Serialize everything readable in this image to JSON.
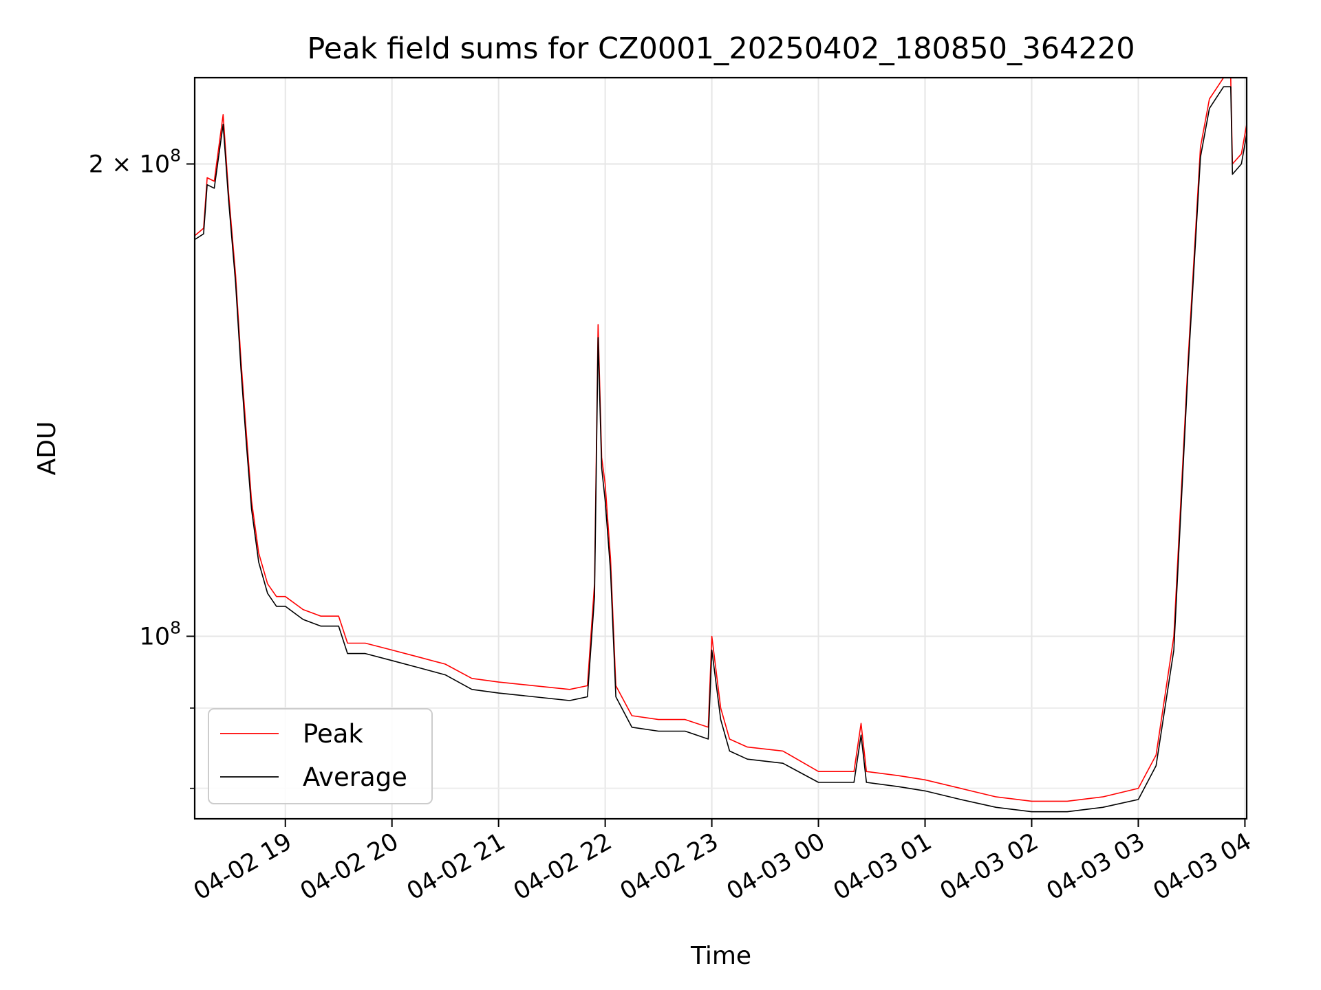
{
  "chart_data": {
    "type": "line",
    "title": "Peak field sums for CZ0001_20250402_180850_364220",
    "xlabel": "Time",
    "ylabel": "ADU",
    "yscale": "log",
    "xlim": [
      "2025-04-02T18:09",
      "2025-04-03T04:01"
    ],
    "ylim": [
      76500000,
      227000000
    ],
    "grid": true,
    "legend_position": "lower-left",
    "x_ticks": [
      {
        "value": "2025-04-02T19:00",
        "label": "04-02 19"
      },
      {
        "value": "2025-04-02T20:00",
        "label": "04-02 20"
      },
      {
        "value": "2025-04-02T21:00",
        "label": "04-02 21"
      },
      {
        "value": "2025-04-02T22:00",
        "label": "04-02 22"
      },
      {
        "value": "2025-04-02T23:00",
        "label": "04-02 23"
      },
      {
        "value": "2025-04-03T00:00",
        "label": "04-03 00"
      },
      {
        "value": "2025-04-03T01:00",
        "label": "04-03 01"
      },
      {
        "value": "2025-04-03T02:00",
        "label": "04-03 02"
      },
      {
        "value": "2025-04-03T03:00",
        "label": "04-03 03"
      },
      {
        "value": "2025-04-03T04:00",
        "label": "04-03 04"
      }
    ],
    "y_ticks": [
      {
        "value": 100000000,
        "base": "10",
        "exp": "8",
        "prefix": ""
      },
      {
        "value": 200000000,
        "base": "10",
        "exp": "8",
        "prefix": "2 × "
      }
    ],
    "y_minor_ticks": [
      80000000,
      90000000
    ],
    "series": [
      {
        "name": "Peak",
        "color": "#ff0000",
        "points": [
          [
            "2025-04-02T18:09",
            180000000
          ],
          [
            "2025-04-02T18:14",
            182000000
          ],
          [
            "2025-04-02T18:16",
            196000000
          ],
          [
            "2025-04-02T18:20",
            195000000
          ],
          [
            "2025-04-02T18:25",
            215000000
          ],
          [
            "2025-04-02T18:28",
            192000000
          ],
          [
            "2025-04-02T18:32",
            170000000
          ],
          [
            "2025-04-02T18:35",
            150000000
          ],
          [
            "2025-04-02T18:38",
            135000000
          ],
          [
            "2025-04-02T18:41",
            122000000
          ],
          [
            "2025-04-02T18:45",
            113000000
          ],
          [
            "2025-04-02T18:50",
            108000000
          ],
          [
            "2025-04-02T18:55",
            106000000
          ],
          [
            "2025-04-02T19:00",
            106000000
          ],
          [
            "2025-04-02T19:10",
            104000000
          ],
          [
            "2025-04-02T19:20",
            103000000
          ],
          [
            "2025-04-02T19:30",
            103000000
          ],
          [
            "2025-04-02T19:35",
            99000000
          ],
          [
            "2025-04-02T19:45",
            99000000
          ],
          [
            "2025-04-02T20:00",
            98000000
          ],
          [
            "2025-04-02T20:15",
            97000000
          ],
          [
            "2025-04-02T20:30",
            96000000
          ],
          [
            "2025-04-02T20:45",
            94000000
          ],
          [
            "2025-04-02T21:00",
            93500000
          ],
          [
            "2025-04-02T21:20",
            93000000
          ],
          [
            "2025-04-02T21:40",
            92500000
          ],
          [
            "2025-04-02T21:50",
            93000000
          ],
          [
            "2025-04-02T21:54",
            108000000
          ],
          [
            "2025-04-02T21:56",
            158000000
          ],
          [
            "2025-04-02T21:58",
            130000000
          ],
          [
            "2025-04-02T22:00",
            125000000
          ],
          [
            "2025-04-02T22:03",
            112000000
          ],
          [
            "2025-04-02T22:06",
            93000000
          ],
          [
            "2025-04-02T22:15",
            89000000
          ],
          [
            "2025-04-02T22:30",
            88500000
          ],
          [
            "2025-04-02T22:45",
            88500000
          ],
          [
            "2025-04-02T22:58",
            87500000
          ],
          [
            "2025-04-02T23:00",
            100000000
          ],
          [
            "2025-04-02T23:05",
            90000000
          ],
          [
            "2025-04-02T23:10",
            86000000
          ],
          [
            "2025-04-02T23:20",
            85000000
          ],
          [
            "2025-04-02T23:40",
            84500000
          ],
          [
            "2025-04-03T00:00",
            82000000
          ],
          [
            "2025-04-03T00:20",
            82000000
          ],
          [
            "2025-04-03T00:24",
            88000000
          ],
          [
            "2025-04-03T00:27",
            82000000
          ],
          [
            "2025-04-03T00:45",
            81500000
          ],
          [
            "2025-04-03T01:00",
            81000000
          ],
          [
            "2025-04-03T01:20",
            80000000
          ],
          [
            "2025-04-03T01:40",
            79000000
          ],
          [
            "2025-04-03T02:00",
            78500000
          ],
          [
            "2025-04-03T02:20",
            78500000
          ],
          [
            "2025-04-03T02:40",
            79000000
          ],
          [
            "2025-04-03T03:00",
            80000000
          ],
          [
            "2025-04-03T03:10",
            84000000
          ],
          [
            "2025-04-03T03:20",
            100000000
          ],
          [
            "2025-04-03T03:28",
            150000000
          ],
          [
            "2025-04-03T03:35",
            205000000
          ],
          [
            "2025-04-03T03:40",
            220000000
          ],
          [
            "2025-04-03T03:48",
            227000000
          ],
          [
            "2025-04-03T03:52",
            227000000
          ],
          [
            "2025-04-03T03:53",
            200000000
          ],
          [
            "2025-04-03T03:58",
            203000000
          ],
          [
            "2025-04-03T04:01",
            212000000
          ]
        ]
      },
      {
        "name": "Average",
        "color": "#000000",
        "points": [
          [
            "2025-04-02T18:09",
            179000000
          ],
          [
            "2025-04-02T18:14",
            180500000
          ],
          [
            "2025-04-02T18:16",
            194000000
          ],
          [
            "2025-04-02T18:20",
            193000000
          ],
          [
            "2025-04-02T18:25",
            212000000
          ],
          [
            "2025-04-02T18:28",
            190000000
          ],
          [
            "2025-04-02T18:32",
            168000000
          ],
          [
            "2025-04-02T18:35",
            148000000
          ],
          [
            "2025-04-02T18:38",
            133000000
          ],
          [
            "2025-04-02T18:41",
            120500000
          ],
          [
            "2025-04-02T18:45",
            111500000
          ],
          [
            "2025-04-02T18:50",
            106500000
          ],
          [
            "2025-04-02T18:55",
            104500000
          ],
          [
            "2025-04-02T19:00",
            104500000
          ],
          [
            "2025-04-02T19:10",
            102500000
          ],
          [
            "2025-04-02T19:20",
            101500000
          ],
          [
            "2025-04-02T19:30",
            101500000
          ],
          [
            "2025-04-02T19:35",
            97500000
          ],
          [
            "2025-04-02T19:45",
            97500000
          ],
          [
            "2025-04-02T20:00",
            96500000
          ],
          [
            "2025-04-02T20:15",
            95500000
          ],
          [
            "2025-04-02T20:30",
            94500000
          ],
          [
            "2025-04-02T20:45",
            92500000
          ],
          [
            "2025-04-02T21:00",
            92000000
          ],
          [
            "2025-04-02T21:20",
            91500000
          ],
          [
            "2025-04-02T21:40",
            91000000
          ],
          [
            "2025-04-02T21:50",
            91500000
          ],
          [
            "2025-04-02T21:54",
            106000000
          ],
          [
            "2025-04-02T21:56",
            155000000
          ],
          [
            "2025-04-02T21:58",
            128000000
          ],
          [
            "2025-04-02T22:00",
            122000000
          ],
          [
            "2025-04-02T22:03",
            110000000
          ],
          [
            "2025-04-02T22:06",
            91500000
          ],
          [
            "2025-04-02T22:15",
            87500000
          ],
          [
            "2025-04-02T22:30",
            87000000
          ],
          [
            "2025-04-02T22:45",
            87000000
          ],
          [
            "2025-04-02T22:58",
            86000000
          ],
          [
            "2025-04-02T23:00",
            98000000
          ],
          [
            "2025-04-02T23:05",
            88500000
          ],
          [
            "2025-04-02T23:10",
            84500000
          ],
          [
            "2025-04-02T23:20",
            83500000
          ],
          [
            "2025-04-02T23:40",
            83000000
          ],
          [
            "2025-04-03T00:00",
            80700000
          ],
          [
            "2025-04-03T00:20",
            80700000
          ],
          [
            "2025-04-03T00:24",
            86500000
          ],
          [
            "2025-04-03T00:27",
            80700000
          ],
          [
            "2025-04-03T00:45",
            80200000
          ],
          [
            "2025-04-03T01:00",
            79700000
          ],
          [
            "2025-04-03T01:20",
            78700000
          ],
          [
            "2025-04-03T01:40",
            77800000
          ],
          [
            "2025-04-03T02:00",
            77300000
          ],
          [
            "2025-04-03T02:20",
            77300000
          ],
          [
            "2025-04-03T02:40",
            77800000
          ],
          [
            "2025-04-03T03:00",
            78700000
          ],
          [
            "2025-04-03T03:10",
            82700000
          ],
          [
            "2025-04-03T03:20",
            98000000
          ],
          [
            "2025-04-03T03:28",
            148000000
          ],
          [
            "2025-04-03T03:35",
            202000000
          ],
          [
            "2025-04-03T03:40",
            217000000
          ],
          [
            "2025-04-03T03:48",
            224000000
          ],
          [
            "2025-04-03T03:52",
            224000000
          ],
          [
            "2025-04-03T03:53",
            197000000
          ],
          [
            "2025-04-03T03:58",
            200000000
          ],
          [
            "2025-04-03T04:01",
            209000000
          ]
        ]
      }
    ]
  }
}
